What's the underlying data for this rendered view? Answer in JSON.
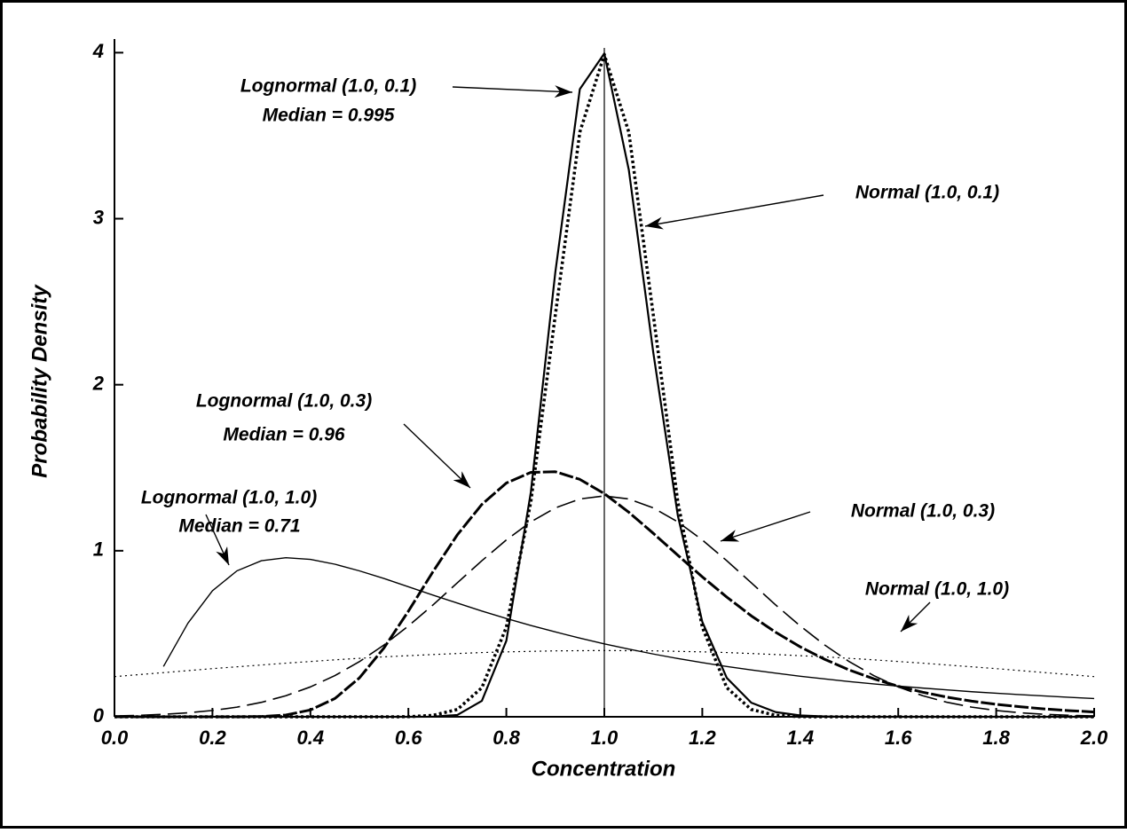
{
  "chart_data": {
    "type": "line",
    "xlabel": "Concentration",
    "ylabel": "Probability Density",
    "xlim": [
      0,
      2
    ],
    "ylim": [
      0,
      4.05
    ],
    "xticks": [
      {
        "value": 0,
        "label": "0.0"
      },
      0.2,
      0.4,
      0.6,
      0.8,
      {
        "value": 1,
        "label": "1.0"
      },
      1.2,
      1.4,
      1.6,
      1.8,
      {
        "value": 2,
        "label": "2.0"
      }
    ],
    "yticks": [
      0,
      1,
      2,
      3,
      4
    ],
    "vlines": [
      1
    ],
    "x": [
      0,
      0.05,
      0.1,
      0.15,
      0.2,
      0.25,
      0.3,
      0.35,
      0.4,
      0.45,
      0.5,
      0.55,
      0.6,
      0.65,
      0.7,
      0.75,
      0.8,
      0.85,
      0.9,
      0.95,
      1.0,
      1.05,
      1.1,
      1.15,
      1.2,
      1.25,
      1.3,
      1.35,
      1.4,
      1.45,
      1.5,
      1.55,
      1.6,
      1.65,
      1.7,
      1.75,
      1.8,
      1.85,
      1.9,
      1.95,
      2.0
    ],
    "series": [
      {
        "name": "Lognormal (1.0, 0.1)",
        "note": "Median = 0.995",
        "color": "#000",
        "style": "solid-thick",
        "values": [
          0,
          0,
          0,
          0,
          0,
          0,
          0,
          0,
          0,
          0,
          0,
          0,
          0,
          0.0007,
          0.011,
          0.096,
          0.458,
          1.353,
          2.678,
          3.78,
          3.995,
          3.294,
          2.193,
          1.213,
          0.572,
          0.234,
          0.085,
          0.028,
          0.008,
          0.002,
          0,
          0,
          0,
          0,
          0,
          0,
          0,
          0,
          0,
          0,
          0
        ]
      },
      {
        "name": "Normal (1.0, 0.1)",
        "color": "#000",
        "style": "dotted-thick",
        "values": [
          0,
          0,
          0,
          0,
          0,
          0,
          0,
          0,
          0,
          0,
          0,
          0,
          0.0005,
          0.0087,
          0.044,
          0.175,
          0.54,
          1.295,
          2.42,
          3.521,
          3.989,
          3.521,
          2.42,
          1.295,
          0.54,
          0.175,
          0.044,
          0.0087,
          0.0005,
          0,
          0,
          0,
          0,
          0,
          0,
          0,
          0,
          0,
          0,
          0,
          0
        ]
      },
      {
        "name": "Lognormal (1.0, 0.3)",
        "note": "Median = 0.96",
        "color": "#000",
        "style": "dashed-thick",
        "values": [
          0,
          0,
          0,
          0,
          0,
          0.0002,
          0.0018,
          0.0108,
          0.041,
          0.11,
          0.234,
          0.414,
          0.636,
          0.873,
          1.096,
          1.279,
          1.408,
          1.472,
          1.476,
          1.43,
          1.344,
          1.232,
          1.105,
          0.973,
          0.843,
          0.721,
          0.608,
          0.509,
          0.421,
          0.346,
          0.282,
          0.229,
          0.184,
          0.148,
          0.118,
          0.094,
          0.075,
          0.06,
          0.047,
          0.037,
          0.029
        ]
      },
      {
        "name": "Normal (1.0, 0.3)",
        "color": "#000",
        "style": "dashed-thin",
        "values": [
          0.0051,
          0.0088,
          0.0148,
          0.024,
          0.038,
          0.058,
          0.087,
          0.127,
          0.18,
          0.248,
          0.332,
          0.432,
          0.547,
          0.673,
          0.807,
          0.94,
          1.065,
          1.174,
          1.258,
          1.312,
          1.33,
          1.312,
          1.258,
          1.174,
          1.065,
          0.94,
          0.807,
          0.673,
          0.547,
          0.432,
          0.332,
          0.248,
          0.18,
          0.127,
          0.087,
          0.058,
          0.038,
          0.024,
          0.0148,
          0.0088,
          0.0051
        ]
      },
      {
        "name": "Lognormal (1.0, 1.0)",
        "note": "Median = 0.71",
        "color": "#000",
        "style": "solid-thin",
        "values": [
          null,
          null,
          0.303,
          0.564,
          0.759,
          0.879,
          0.94,
          0.958,
          0.948,
          0.919,
          0.879,
          0.833,
          0.783,
          0.733,
          0.685,
          0.637,
          0.592,
          0.55,
          0.511,
          0.474,
          0.439,
          0.408,
          0.378,
          0.351,
          0.326,
          0.303,
          0.282,
          0.263,
          0.244,
          0.228,
          0.212,
          0.198,
          0.185,
          0.173,
          0.162,
          0.151,
          0.142,
          0.133,
          0.125,
          0.117,
          0.11
        ]
      },
      {
        "name": "Normal (1.0, 1.0)",
        "color": "#000",
        "style": "dotted-thin",
        "values": [
          0.242,
          0.254,
          0.266,
          0.278,
          0.29,
          0.301,
          0.312,
          0.323,
          0.333,
          0.343,
          0.352,
          0.361,
          0.368,
          0.375,
          0.381,
          0.387,
          0.391,
          0.394,
          0.397,
          0.398,
          0.399,
          0.398,
          0.397,
          0.394,
          0.391,
          0.387,
          0.381,
          0.375,
          0.368,
          0.361,
          0.352,
          0.343,
          0.333,
          0.323,
          0.312,
          0.301,
          0.29,
          0.278,
          0.266,
          0.254,
          0.242
        ]
      }
    ]
  }
}
